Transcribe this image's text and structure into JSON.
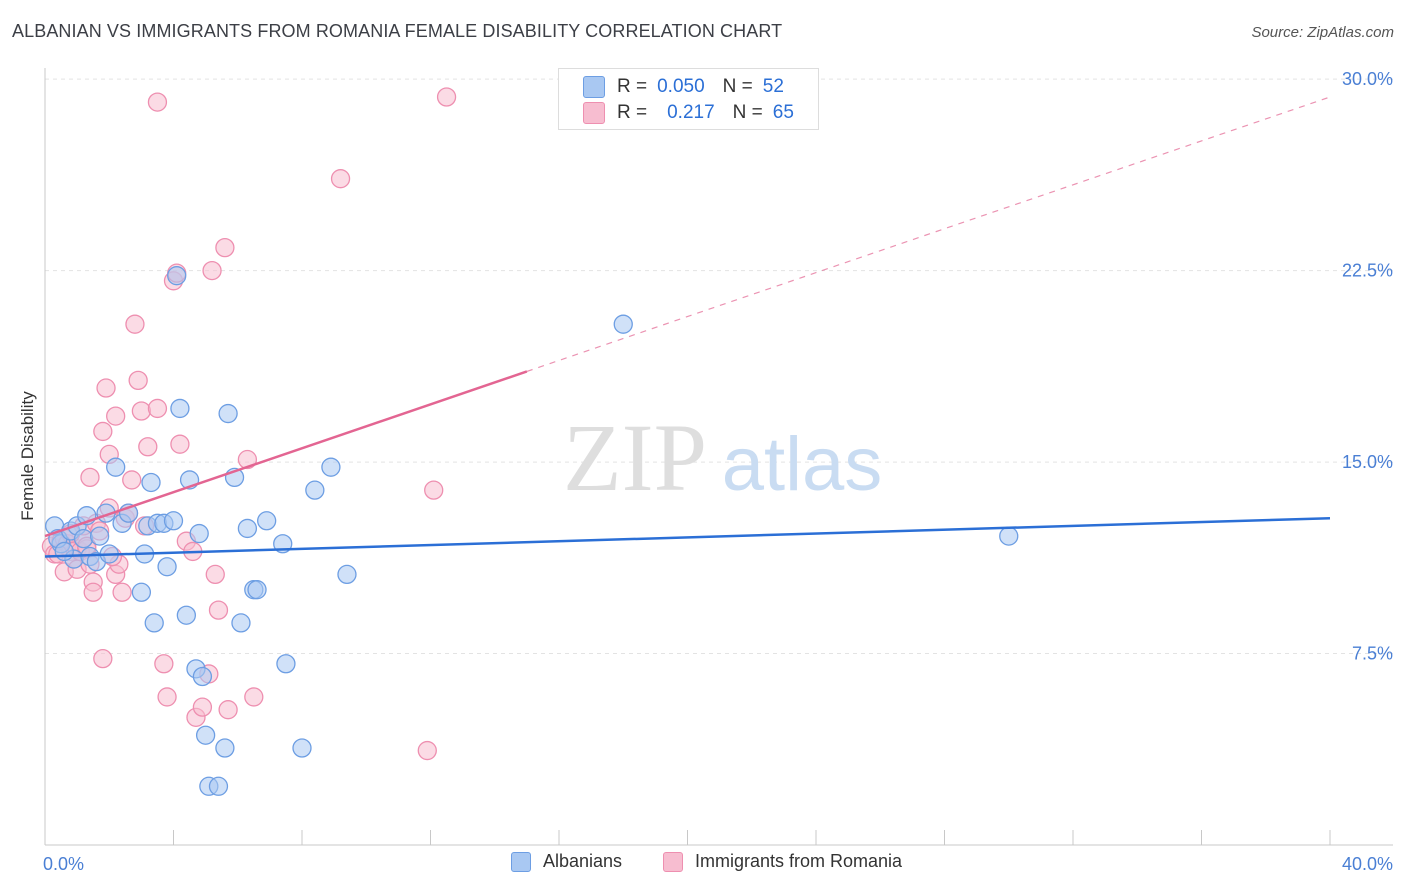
{
  "title": "ALBANIAN VS IMMIGRANTS FROM ROMANIA FEMALE DISABILITY CORRELATION CHART",
  "source": "Source: ZipAtlas.com",
  "watermark": {
    "zip": "ZIP",
    "atlas": "atlas"
  },
  "legend_top": {
    "rows": [
      {
        "r_label": "R =",
        "r_value": "0.050",
        "n_label": "N =",
        "n_value": "52"
      },
      {
        "r_label": "R =",
        "r_value": "0.217",
        "n_label": "N =",
        "n_value": "65"
      }
    ]
  },
  "legend_bottom": {
    "albanians": "Albanians",
    "romania": "Immigrants from Romania"
  },
  "colors": {
    "blue_fill": "#a9c8f2",
    "blue_stroke": "#6d9ee3",
    "blue_line": "#2b6fd6",
    "pink_fill": "#f7bdd0",
    "pink_stroke": "#ee8fb0",
    "pink_line": "#e36592",
    "axis_text": "#4a7fd4"
  },
  "chart_data": {
    "type": "scatter",
    "title": "ALBANIAN VS IMMIGRANTS FROM ROMANIA FEMALE DISABILITY CORRELATION CHART",
    "xlabel": "",
    "ylabel": "Female Disability",
    "xlim": [
      0,
      40
    ],
    "ylim": [
      0,
      31
    ],
    "x_tick_labels": [
      "0.0%",
      "40.0%"
    ],
    "y_ticks": [
      7.5,
      15.0,
      22.5,
      30.0
    ],
    "y_tick_labels": [
      "7.5%",
      "15.0%",
      "22.5%",
      "30.0%"
    ],
    "grid": true,
    "series": [
      {
        "name": "Albanians",
        "r": 0.05,
        "n": 52,
        "trend": {
          "x": [
            0,
            40
          ],
          "y": [
            11.3,
            12.8
          ],
          "dashed_from": null
        },
        "points": [
          [
            0.3,
            12.5
          ],
          [
            0.5,
            11.8
          ],
          [
            0.4,
            12.0
          ],
          [
            0.8,
            12.3
          ],
          [
            0.9,
            11.2
          ],
          [
            1.0,
            12.5
          ],
          [
            1.2,
            12.0
          ],
          [
            1.4,
            11.3
          ],
          [
            1.6,
            11.1
          ],
          [
            1.7,
            12.1
          ],
          [
            1.9,
            13.0
          ],
          [
            2.0,
            11.4
          ],
          [
            2.2,
            14.8
          ],
          [
            2.4,
            12.6
          ],
          [
            2.6,
            13.0
          ],
          [
            3.0,
            9.9
          ],
          [
            3.1,
            11.4
          ],
          [
            3.2,
            12.5
          ],
          [
            3.3,
            14.2
          ],
          [
            3.4,
            8.7
          ],
          [
            3.5,
            12.6
          ],
          [
            3.7,
            12.6
          ],
          [
            3.8,
            10.9
          ],
          [
            4.0,
            12.7
          ],
          [
            4.1,
            22.3
          ],
          [
            4.2,
            17.1
          ],
          [
            4.4,
            9.0
          ],
          [
            4.5,
            14.3
          ],
          [
            4.7,
            6.9
          ],
          [
            4.8,
            12.2
          ],
          [
            4.9,
            6.6
          ],
          [
            5.0,
            4.3
          ],
          [
            5.1,
            2.3
          ],
          [
            5.4,
            2.3
          ],
          [
            5.6,
            3.8
          ],
          [
            5.7,
            16.9
          ],
          [
            5.9,
            14.4
          ],
          [
            6.1,
            8.7
          ],
          [
            6.3,
            12.4
          ],
          [
            6.5,
            10.0
          ],
          [
            6.6,
            10.0
          ],
          [
            6.9,
            12.7
          ],
          [
            7.4,
            11.8
          ],
          [
            7.5,
            7.1
          ],
          [
            8.0,
            3.8
          ],
          [
            8.4,
            13.9
          ],
          [
            8.9,
            14.8
          ],
          [
            9.4,
            10.6
          ],
          [
            18.0,
            20.4
          ],
          [
            30.0,
            12.1
          ],
          [
            0.6,
            11.5
          ],
          [
            1.3,
            12.9
          ]
        ]
      },
      {
        "name": "Immigrants from Romania",
        "r": 0.217,
        "n": 65,
        "trend": {
          "x": [
            0,
            40
          ],
          "y": [
            12.1,
            29.3
          ],
          "solid_until_x": 15
        },
        "points": [
          [
            0.2,
            11.7
          ],
          [
            0.3,
            11.4
          ],
          [
            0.4,
            12.0
          ],
          [
            0.5,
            11.9
          ],
          [
            0.6,
            12.0
          ],
          [
            0.6,
            10.7
          ],
          [
            0.7,
            11.8
          ],
          [
            0.8,
            11.5
          ],
          [
            0.9,
            11.2
          ],
          [
            1.0,
            11.6
          ],
          [
            1.0,
            10.8
          ],
          [
            1.1,
            11.5
          ],
          [
            1.2,
            12.0
          ],
          [
            1.2,
            12.5
          ],
          [
            1.3,
            11.6
          ],
          [
            1.4,
            14.4
          ],
          [
            1.4,
            11.0
          ],
          [
            1.5,
            10.3
          ],
          [
            1.5,
            9.9
          ],
          [
            1.6,
            12.6
          ],
          [
            1.7,
            12.3
          ],
          [
            1.8,
            16.2
          ],
          [
            1.8,
            7.3
          ],
          [
            1.9,
            17.9
          ],
          [
            2.0,
            15.3
          ],
          [
            2.0,
            13.2
          ],
          [
            2.2,
            16.8
          ],
          [
            2.2,
            10.6
          ],
          [
            2.3,
            11.0
          ],
          [
            2.4,
            9.9
          ],
          [
            2.5,
            12.8
          ],
          [
            2.6,
            13.0
          ],
          [
            2.7,
            14.3
          ],
          [
            2.8,
            20.4
          ],
          [
            2.9,
            18.2
          ],
          [
            3.0,
            17.0
          ],
          [
            3.1,
            12.5
          ],
          [
            3.2,
            15.6
          ],
          [
            3.5,
            17.1
          ],
          [
            3.7,
            7.1
          ],
          [
            3.8,
            5.8
          ],
          [
            4.0,
            22.1
          ],
          [
            4.1,
            22.4
          ],
          [
            4.2,
            15.7
          ],
          [
            4.4,
            11.9
          ],
          [
            4.6,
            11.5
          ],
          [
            4.7,
            5.0
          ],
          [
            4.9,
            5.4
          ],
          [
            5.1,
            6.7
          ],
          [
            5.2,
            22.5
          ],
          [
            5.3,
            10.6
          ],
          [
            5.4,
            9.2
          ],
          [
            5.6,
            23.4
          ],
          [
            5.7,
            5.3
          ],
          [
            6.3,
            15.1
          ],
          [
            6.5,
            5.8
          ],
          [
            9.2,
            26.1
          ],
          [
            11.9,
            3.7
          ],
          [
            12.1,
            13.9
          ],
          [
            12.5,
            29.3
          ],
          [
            3.5,
            29.1
          ],
          [
            0.8,
            12.2
          ],
          [
            2.1,
            11.3
          ],
          [
            1.3,
            11.7
          ],
          [
            0.4,
            11.4
          ]
        ]
      }
    ]
  }
}
